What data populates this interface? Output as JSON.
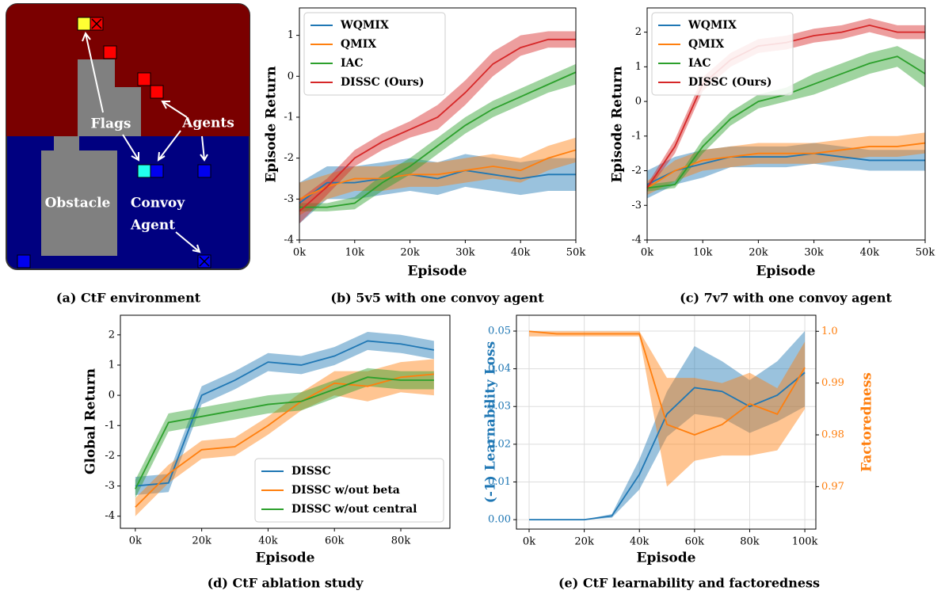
{
  "environment": {
    "labels": [
      "Flags",
      "Agents",
      "Obstacle",
      "Convoy",
      "Agent"
    ],
    "caption": "(a) CtF environment"
  },
  "chart_data": [
    {
      "type": "line",
      "caption": "(b) 5v5 with one convoy agent",
      "xlabel": "Episode",
      "ylabel": "Episode Return",
      "legend": "upper-left",
      "grid": false,
      "x": [
        0,
        5000,
        10000,
        15000,
        20000,
        25000,
        30000,
        35000,
        40000,
        45000,
        50000
      ],
      "xlim": [
        0,
        50000
      ],
      "ylim": [
        -4,
        1.67
      ],
      "xticks": [
        {
          "value": 0,
          "label": "0k"
        },
        {
          "value": 10000,
          "label": "10k"
        },
        {
          "value": 20000,
          "label": "20k"
        },
        {
          "value": 30000,
          "label": "30k"
        },
        {
          "value": 40000,
          "label": "40k"
        },
        {
          "value": 50000,
          "label": "50k"
        }
      ],
      "yticks": [
        -4,
        -3,
        -2,
        -1,
        0,
        1
      ],
      "series": [
        {
          "name": "WQMIX",
          "color": "#1f77b4",
          "values": [
            -3.1,
            -2.6,
            -2.6,
            -2.5,
            -2.4,
            -2.5,
            -2.3,
            -2.4,
            -2.5,
            -2.4,
            -2.4
          ],
          "lower": [
            -3.6,
            -3.0,
            -3.0,
            -2.9,
            -2.8,
            -2.9,
            -2.7,
            -2.8,
            -2.9,
            -2.8,
            -2.8
          ],
          "upper": [
            -2.6,
            -2.2,
            -2.2,
            -2.1,
            -2.0,
            -2.1,
            -1.9,
            -2.0,
            -2.1,
            -2.0,
            -2.0
          ]
        },
        {
          "name": "QMIX",
          "color": "#ff7f0e",
          "values": [
            -3.0,
            -2.7,
            -2.5,
            -2.5,
            -2.4,
            -2.4,
            -2.3,
            -2.2,
            -2.3,
            -2.0,
            -1.8
          ],
          "lower": [
            -3.4,
            -3.0,
            -2.8,
            -2.8,
            -2.7,
            -2.7,
            -2.6,
            -2.5,
            -2.6,
            -2.3,
            -2.1
          ],
          "upper": [
            -2.6,
            -2.4,
            -2.2,
            -2.2,
            -2.1,
            -2.1,
            -2.0,
            -1.9,
            -2.0,
            -1.7,
            -1.5
          ]
        },
        {
          "name": "IAC",
          "color": "#2ca02c",
          "values": [
            -3.2,
            -3.2,
            -3.1,
            -2.6,
            -2.2,
            -1.7,
            -1.2,
            -0.8,
            -0.5,
            -0.2,
            0.1
          ],
          "lower": [
            -3.3,
            -3.3,
            -3.25,
            -2.8,
            -2.4,
            -1.9,
            -1.4,
            -1.0,
            -0.7,
            -0.4,
            -0.2
          ],
          "upper": [
            -3.1,
            -3.1,
            -2.95,
            -2.4,
            -2.0,
            -1.5,
            -1.0,
            -0.6,
            -0.3,
            0.0,
            0.3
          ]
        },
        {
          "name": "DISSC (Ours)",
          "color": "#d62728",
          "values": [
            -3.3,
            -2.7,
            -2.0,
            -1.6,
            -1.3,
            -1.0,
            -0.4,
            0.3,
            0.7,
            0.9,
            0.9
          ],
          "lower": [
            -3.6,
            -2.9,
            -2.2,
            -1.8,
            -1.5,
            -1.3,
            -0.7,
            0.0,
            0.5,
            0.7,
            0.7
          ],
          "upper": [
            -3.0,
            -2.5,
            -1.8,
            -1.4,
            -1.1,
            -0.7,
            -0.1,
            0.6,
            1.0,
            1.1,
            1.1
          ]
        }
      ]
    },
    {
      "type": "line",
      "caption": "(c) 7v7 with one convoy agent",
      "xlabel": "Episode",
      "ylabel": "Episode Return",
      "legend": "upper-left",
      "grid": false,
      "x": [
        0,
        5000,
        10000,
        15000,
        20000,
        25000,
        30000,
        35000,
        40000,
        45000,
        50000
      ],
      "xlim": [
        0,
        50000
      ],
      "ylim": [
        -4,
        2.7
      ],
      "xticks": [
        {
          "value": 0,
          "label": "0k"
        },
        {
          "value": 10000,
          "label": "10k"
        },
        {
          "value": 20000,
          "label": "20k"
        },
        {
          "value": 30000,
          "label": "30k"
        },
        {
          "value": 40000,
          "label": "40k"
        },
        {
          "value": 50000,
          "label": "50k"
        }
      ],
      "yticks": [
        -4,
        -3,
        -2,
        -1,
        0,
        1,
        2
      ],
      "series": [
        {
          "name": "WQMIX",
          "color": "#1f77b4",
          "values": [
            -2.4,
            -2.0,
            -1.8,
            -1.6,
            -1.6,
            -1.6,
            -1.5,
            -1.6,
            -1.7,
            -1.7,
            -1.7
          ],
          "lower": [
            -2.8,
            -2.4,
            -2.2,
            -1.9,
            -1.9,
            -1.9,
            -1.8,
            -1.9,
            -2.0,
            -2.0,
            -2.0
          ],
          "upper": [
            -2.0,
            -1.6,
            -1.4,
            -1.3,
            -1.3,
            -1.3,
            -1.2,
            -1.3,
            -1.4,
            -1.4,
            -1.4
          ]
        },
        {
          "name": "QMIX",
          "color": "#ff7f0e",
          "values": [
            -2.5,
            -2.0,
            -1.7,
            -1.6,
            -1.5,
            -1.5,
            -1.5,
            -1.4,
            -1.3,
            -1.3,
            -1.2
          ],
          "lower": [
            -2.7,
            -2.3,
            -2.0,
            -1.9,
            -1.8,
            -1.8,
            -1.8,
            -1.7,
            -1.6,
            -1.6,
            -1.5
          ],
          "upper": [
            -2.3,
            -1.7,
            -1.4,
            -1.3,
            -1.2,
            -1.2,
            -1.2,
            -1.1,
            -1.0,
            -1.0,
            -0.9
          ]
        },
        {
          "name": "IAC",
          "color": "#2ca02c",
          "values": [
            -2.5,
            -2.4,
            -1.3,
            -0.5,
            0.0,
            0.2,
            0.5,
            0.8,
            1.1,
            1.3,
            0.8
          ],
          "lower": [
            -2.6,
            -2.5,
            -1.5,
            -0.7,
            -0.2,
            0.0,
            0.2,
            0.5,
            0.8,
            1.0,
            0.4
          ],
          "upper": [
            -2.4,
            -2.3,
            -1.1,
            -0.3,
            0.2,
            0.4,
            0.8,
            1.1,
            1.4,
            1.6,
            1.2
          ]
        },
        {
          "name": "DISSC (Ours)",
          "color": "#d62728",
          "values": [
            -2.5,
            -1.3,
            0.5,
            1.2,
            1.6,
            1.7,
            1.9,
            2.0,
            2.2,
            2.0,
            2.0
          ],
          "lower": [
            -2.6,
            -1.5,
            0.3,
            1.0,
            1.4,
            1.5,
            1.7,
            1.8,
            2.0,
            1.8,
            1.8
          ],
          "upper": [
            -2.4,
            -1.1,
            0.7,
            1.4,
            1.8,
            1.9,
            2.1,
            2.2,
            2.4,
            2.2,
            2.2
          ]
        }
      ]
    },
    {
      "type": "line",
      "caption": "(d) CtF ablation study",
      "xlabel": "Episode",
      "ylabel": "Global Return",
      "legend": "lower-right",
      "grid": false,
      "x": [
        0,
        10000,
        20000,
        30000,
        40000,
        50000,
        60000,
        70000,
        80000,
        90000
      ],
      "xlim": [
        -4500,
        94800
      ],
      "ylim": [
        -4.4,
        2.65
      ],
      "xticks": [
        {
          "value": 0,
          "label": "0k"
        },
        {
          "value": 20000,
          "label": "20k"
        },
        {
          "value": 40000,
          "label": "40k"
        },
        {
          "value": 60000,
          "label": "60k"
        },
        {
          "value": 80000,
          "label": "80k"
        }
      ],
      "yticks": [
        -4,
        -3,
        -2,
        -1,
        0,
        1,
        2
      ],
      "series": [
        {
          "name": "DISSC",
          "color": "#1f77b4",
          "values": [
            -3.0,
            -2.9,
            0.0,
            0.5,
            1.1,
            1.0,
            1.3,
            1.8,
            1.7,
            1.5
          ],
          "lower": [
            -3.3,
            -3.2,
            -0.3,
            0.2,
            0.8,
            0.7,
            1.0,
            1.5,
            1.4,
            1.2
          ],
          "upper": [
            -2.7,
            -2.6,
            0.3,
            0.8,
            1.4,
            1.3,
            1.6,
            2.1,
            2.0,
            1.8
          ]
        },
        {
          "name": "DISSC w/out beta",
          "color": "#ff7f0e",
          "values": [
            -3.7,
            -2.6,
            -1.8,
            -1.7,
            -1.0,
            -0.2,
            0.4,
            0.3,
            0.6,
            0.7
          ],
          "lower": [
            -4.0,
            -2.9,
            -2.1,
            -2.0,
            -1.3,
            -0.5,
            0.0,
            -0.2,
            0.1,
            0.0
          ],
          "upper": [
            -3.4,
            -2.3,
            -1.5,
            -1.4,
            -0.7,
            0.1,
            0.8,
            0.8,
            1.1,
            1.2
          ]
        },
        {
          "name": "DISSC w/out central",
          "color": "#2ca02c",
          "values": [
            -3.1,
            -0.9,
            -0.7,
            -0.5,
            -0.3,
            -0.2,
            0.2,
            0.6,
            0.5,
            0.5
          ],
          "lower": [
            -3.4,
            -1.2,
            -1.0,
            -0.8,
            -0.6,
            -0.5,
            -0.1,
            0.3,
            0.2,
            0.2
          ],
          "upper": [
            -2.8,
            -0.6,
            -0.4,
            -0.2,
            0.0,
            0.1,
            0.5,
            0.9,
            0.8,
            0.8
          ]
        }
      ]
    },
    {
      "type": "line",
      "caption": "(e) CtF learnability and factoredness",
      "xlabel": "Episode",
      "ylabel": "(-1) Learnability Loss",
      "y2label": "Factoredness",
      "grid": true,
      "x": [
        0,
        10000,
        20000,
        30000,
        40000,
        50000,
        60000,
        70000,
        80000,
        90000,
        100000
      ],
      "xlim": [
        -4600,
        104000
      ],
      "ylim": [
        -0.0025,
        0.0542
      ],
      "y2lim": [
        0.9618,
        1.0031
      ],
      "xticks": [
        {
          "value": 0,
          "label": "0k"
        },
        {
          "value": 20000,
          "label": "20k"
        },
        {
          "value": 40000,
          "label": "40k"
        },
        {
          "value": 60000,
          "label": "60k"
        },
        {
          "value": 80000,
          "label": "80k"
        },
        {
          "value": 100000,
          "label": "100k"
        }
      ],
      "yticks": [
        {
          "value": 0,
          "label": "0.00"
        },
        0.01,
        0.02,
        0.03,
        0.04,
        0.05
      ],
      "y2ticks": [
        0.97,
        0.98,
        0.99,
        {
          "value": 1,
          "label": "1.0"
        }
      ],
      "series": [
        {
          "color": "#1f77b4",
          "values": [
            0,
            0,
            0,
            0.001,
            0.012,
            0.028,
            0.035,
            0.034,
            0.03,
            0.033,
            0.039
          ],
          "lower": [
            0,
            0,
            0,
            0.0005,
            0.008,
            0.022,
            0.028,
            0.027,
            0.023,
            0.026,
            0.03
          ],
          "upper": [
            0,
            0,
            0,
            0.0015,
            0.016,
            0.034,
            0.046,
            0.042,
            0.037,
            0.042,
            0.05
          ]
        },
        {
          "axis": "y2",
          "color": "#ff7f0e",
          "values": [
            1.0,
            0.9995,
            0.9995,
            0.9995,
            0.9995,
            0.982,
            0.98,
            0.982,
            0.986,
            0.984,
            0.993
          ],
          "lower": [
            0.999,
            0.999,
            0.999,
            0.999,
            0.999,
            0.97,
            0.975,
            0.976,
            0.976,
            0.977,
            0.985
          ],
          "upper": [
            1.0,
            1.0,
            1.0,
            1.0,
            1.0,
            0.991,
            0.991,
            0.99,
            0.992,
            0.989,
            0.998
          ]
        }
      ]
    }
  ]
}
